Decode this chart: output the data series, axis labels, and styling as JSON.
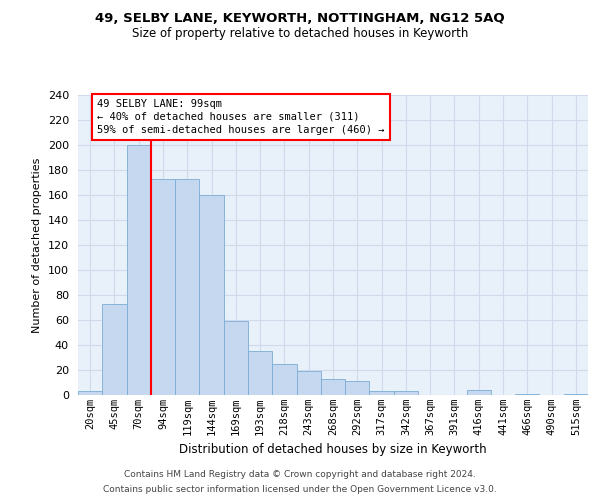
{
  "title1": "49, SELBY LANE, KEYWORTH, NOTTINGHAM, NG12 5AQ",
  "title2": "Size of property relative to detached houses in Keyworth",
  "xlabel": "Distribution of detached houses by size in Keyworth",
  "ylabel": "Number of detached properties",
  "bar_values": [
    3,
    73,
    200,
    173,
    173,
    160,
    59,
    35,
    25,
    19,
    13,
    11,
    3,
    3,
    0,
    0,
    4,
    0,
    1,
    0,
    1
  ],
  "categories": [
    "20sqm",
    "45sqm",
    "70sqm",
    "94sqm",
    "119sqm",
    "144sqm",
    "169sqm",
    "193sqm",
    "218sqm",
    "243sqm",
    "268sqm",
    "292sqm",
    "317sqm",
    "342sqm",
    "367sqm",
    "391sqm",
    "416sqm",
    "441sqm",
    "466sqm",
    "490sqm",
    "515sqm"
  ],
  "bar_color": "#c5d8f0",
  "bar_edge_color": "#7aadd4",
  "vline_color": "red",
  "vline_x": 2.5,
  "annotation_text": "49 SELBY LANE: 99sqm\n← 40% of detached houses are smaller (311)\n59% of semi-detached houses are larger (460) →",
  "annotation_box_color": "white",
  "annotation_box_edge": "red",
  "ylim_max": 240,
  "yticks": [
    0,
    20,
    40,
    60,
    80,
    100,
    120,
    140,
    160,
    180,
    200,
    220,
    240
  ],
  "background_color": "#e8f0fa",
  "grid_color": "#d0daea",
  "footer1": "Contains HM Land Registry data © Crown copyright and database right 2024.",
  "footer2": "Contains public sector information licensed under the Open Government Licence v3.0."
}
